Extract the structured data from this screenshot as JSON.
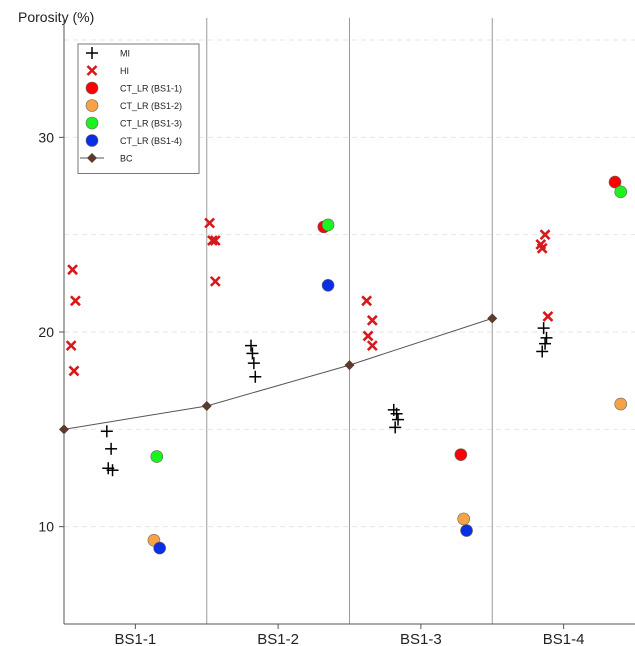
{
  "chart_data": {
    "type": "scatter",
    "ylabel": "Porosity (%)",
    "xlabel": "",
    "ylim": [
      5,
      35
    ],
    "yticks": [
      10,
      20,
      30
    ],
    "grid": "horizontal dashed",
    "legend_position": "top-left",
    "categories": [
      "BS1-1",
      "BS1-2",
      "BS1-3",
      "BS1-4"
    ],
    "series": [
      {
        "name": "MI",
        "marker": "plus",
        "color": "#000000",
        "points": [
          {
            "category": "BS1-1",
            "offset": -0.2,
            "y": 14.9
          },
          {
            "category": "BS1-1",
            "offset": -0.17,
            "y": 14.0
          },
          {
            "category": "BS1-1",
            "offset": -0.19,
            "y": 13.0
          },
          {
            "category": "BS1-1",
            "offset": -0.16,
            "y": 12.9
          },
          {
            "category": "BS1-2",
            "offset": -0.19,
            "y": 19.3
          },
          {
            "category": "BS1-2",
            "offset": -0.18,
            "y": 18.9
          },
          {
            "category": "BS1-2",
            "offset": -0.17,
            "y": 18.4
          },
          {
            "category": "BS1-2",
            "offset": -0.16,
            "y": 17.7
          },
          {
            "category": "BS1-3",
            "offset": -0.19,
            "y": 16.0
          },
          {
            "category": "BS1-3",
            "offset": -0.17,
            "y": 15.8
          },
          {
            "category": "BS1-3",
            "offset": -0.16,
            "y": 15.5
          },
          {
            "category": "BS1-3",
            "offset": -0.18,
            "y": 15.1
          },
          {
            "category": "BS1-4",
            "offset": -0.14,
            "y": 20.2
          },
          {
            "category": "BS1-4",
            "offset": -0.12,
            "y": 19.7
          },
          {
            "category": "BS1-4",
            "offset": -0.13,
            "y": 19.4
          },
          {
            "category": "BS1-4",
            "offset": -0.15,
            "y": 19.0
          }
        ]
      },
      {
        "name": "HI",
        "marker": "x",
        "color": "#d7191c",
        "points": [
          {
            "category": "BS1-1",
            "offset": -0.44,
            "y": 23.2
          },
          {
            "category": "BS1-1",
            "offset": -0.42,
            "y": 21.6
          },
          {
            "category": "BS1-1",
            "offset": -0.45,
            "y": 19.3
          },
          {
            "category": "BS1-1",
            "offset": -0.43,
            "y": 18.0
          },
          {
            "category": "BS1-2",
            "offset": -0.48,
            "y": 25.6
          },
          {
            "category": "BS1-2",
            "offset": -0.46,
            "y": 24.7
          },
          {
            "category": "BS1-2",
            "offset": -0.44,
            "y": 24.7
          },
          {
            "category": "BS1-2",
            "offset": -0.44,
            "y": 22.6
          },
          {
            "category": "BS1-3",
            "offset": -0.38,
            "y": 21.6
          },
          {
            "category": "BS1-3",
            "offset": -0.34,
            "y": 20.6
          },
          {
            "category": "BS1-3",
            "offset": -0.37,
            "y": 19.8
          },
          {
            "category": "BS1-3",
            "offset": -0.34,
            "y": 19.3
          },
          {
            "category": "BS1-4",
            "offset": -0.13,
            "y": 25.0
          },
          {
            "category": "BS1-4",
            "offset": -0.16,
            "y": 24.5
          },
          {
            "category": "BS1-4",
            "offset": -0.15,
            "y": 24.3
          },
          {
            "category": "BS1-4",
            "offset": -0.11,
            "y": 20.8
          }
        ]
      },
      {
        "name": "CT_LR (BS1-1)",
        "marker": "circle",
        "color": "#ff0000",
        "points": [
          {
            "category": "BS1-2",
            "offset": 0.32,
            "y": 25.4
          },
          {
            "category": "BS1-3",
            "offset": 0.28,
            "y": 13.7
          },
          {
            "category": "BS1-4",
            "offset": 0.36,
            "y": 27.7
          }
        ]
      },
      {
        "name": "CT_LR (BS1-2)",
        "marker": "circle",
        "color": "#f7a245",
        "points": [
          {
            "category": "BS1-1",
            "offset": 0.13,
            "y": 9.3
          },
          {
            "category": "BS1-3",
            "offset": 0.3,
            "y": 10.4
          },
          {
            "category": "BS1-4",
            "offset": 0.4,
            "y": 16.3
          }
        ]
      },
      {
        "name": "CT_LR (BS1-3)",
        "marker": "circle",
        "color": "#1cf21c",
        "points": [
          {
            "category": "BS1-1",
            "offset": 0.15,
            "y": 13.6
          },
          {
            "category": "BS1-2",
            "offset": 0.35,
            "y": 25.5
          },
          {
            "category": "BS1-4",
            "offset": 0.4,
            "y": 27.2
          }
        ]
      },
      {
        "name": "CT_LR (BS1-4)",
        "marker": "circle",
        "color": "#0a2ee6",
        "points": [
          {
            "category": "BS1-1",
            "offset": 0.17,
            "y": 8.9
          },
          {
            "category": "BS1-2",
            "offset": 0.35,
            "y": 22.4
          },
          {
            "category": "BS1-3",
            "offset": 0.32,
            "y": 9.8
          }
        ]
      },
      {
        "name": "BC",
        "marker": "diamond-line",
        "color": "#5c3a2e",
        "points": [
          {
            "category": "BS1-1",
            "offset": -0.5,
            "y": 15.0
          },
          {
            "category": "BS1-2",
            "offset": -0.5,
            "y": 16.2
          },
          {
            "category": "BS1-3",
            "offset": -0.5,
            "y": 18.3
          },
          {
            "category": "BS1-4",
            "offset": -0.5,
            "y": 20.7
          }
        ]
      }
    ]
  }
}
